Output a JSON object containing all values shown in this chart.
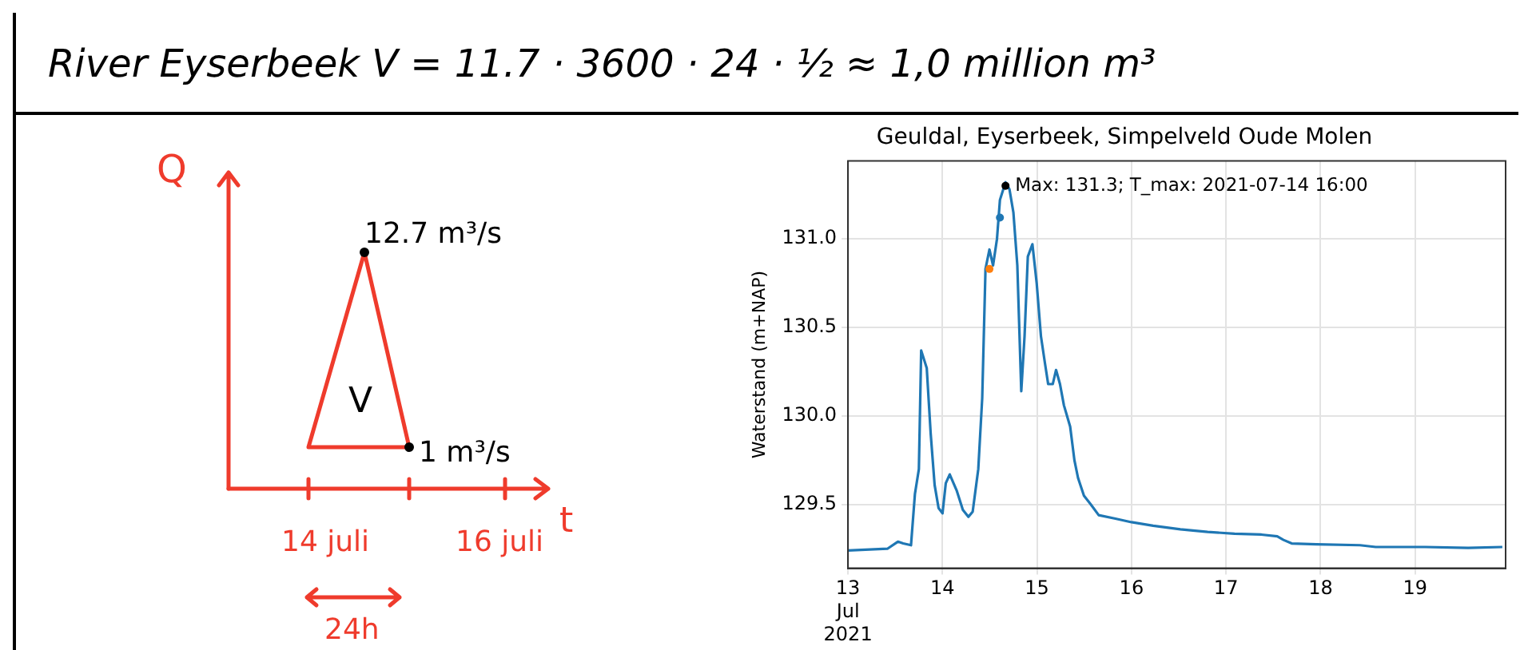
{
  "chart_data": [
    {
      "type": "other",
      "title": "River Eyserbeek V = 11.7 · 3600 · 24 · ½ ≈ 1,0 million m³",
      "xlabel": "t",
      "ylabel": "Q",
      "annotations": [
        "12.7 m³/s",
        "V",
        "1 m³/s",
        "14 juli",
        "16 juli",
        "24h"
      ]
    },
    {
      "type": "line",
      "title": "Geuldal, Eyserbeek, Simpelveld Oude Molen",
      "ylabel": "Waterstand (m+NAP)",
      "grid": true,
      "xlim": [
        "2021-07-13",
        "2021-07-19T23:00"
      ],
      "xticks": [
        {
          "value": "2021-07-13",
          "label": "13\nJul\n2021"
        },
        {
          "value": "2021-07-14",
          "label": "14"
        },
        {
          "value": "2021-07-15",
          "label": "15"
        },
        {
          "value": "2021-07-16",
          "label": "16"
        },
        {
          "value": "2021-07-17",
          "label": "17"
        },
        {
          "value": "2021-07-18",
          "label": "18"
        },
        {
          "value": "2021-07-19",
          "label": "19"
        }
      ],
      "ylim": [
        129.14,
        131.44
      ],
      "yticks": [
        {
          "value": 129.5,
          "label": "129.5"
        },
        {
          "value": 130,
          "label": "130.0"
        },
        {
          "value": 130.5,
          "label": "130.5"
        },
        {
          "value": 131,
          "label": "131.0"
        }
      ],
      "annotations": [
        {
          "text": "Max: 131.3; T_max: 2021-07-14 16:00",
          "x": "2021-07-14T16:00",
          "y": 131.3
        }
      ],
      "series": [
        {
          "type": "line",
          "color": "#1f77b4",
          "marker": "none",
          "x": [
            "2021-07-13T00:00",
            "2021-07-13T10:00",
            "2021-07-13T12:40",
            "2021-07-13T14:00",
            "2021-07-13T16:00",
            "2021-07-13T17:00",
            "2021-07-13T18:00",
            "2021-07-13T18:35",
            "2021-07-13T20:00",
            "2021-07-13T21:00",
            "2021-07-13T22:00",
            "2021-07-13T23:00",
            "2021-07-14T00:00",
            "2021-07-14T00:50",
            "2021-07-14T01:50",
            "2021-07-14T03:35",
            "2021-07-14T05:10",
            "2021-07-14T06:35",
            "2021-07-14T07:40",
            "2021-07-14T09:05",
            "2021-07-14T10:05",
            "2021-07-14T10:55",
            "2021-07-14T11:55",
            "2021-07-14T12:50",
            "2021-07-14T13:50",
            "2021-07-14T14:35",
            "2021-07-14T16:00",
            "2021-07-14T17:00",
            "2021-07-14T18:00",
            "2021-07-14T19:00",
            "2021-07-14T20:00",
            "2021-07-14T20:50",
            "2021-07-14T21:40",
            "2021-07-14T22:50",
            "2021-07-14T23:55",
            "2021-07-15T01:00",
            "2021-07-15T02:00",
            "2021-07-15T02:50",
            "2021-07-15T04:00",
            "2021-07-15T04:50",
            "2021-07-15T05:50",
            "2021-07-15T06:50",
            "2021-07-15T08:25",
            "2021-07-15T09:30",
            "2021-07-15T10:25",
            "2021-07-15T11:55",
            "2021-07-15T13:40",
            "2021-07-15T15:40",
            "2021-07-15T19:55",
            "2021-07-16T00:00",
            "2021-07-16T05:30",
            "2021-07-16T12:25",
            "2021-07-16T19:20",
            "2021-07-17T02:10",
            "2021-07-17T09:00",
            "2021-07-17T13:00",
            "2021-07-17T14:35",
            "2021-07-17T16:40",
            "2021-07-17T22:55",
            "2021-07-18T10:00",
            "2021-07-18T14:00",
            "2021-07-19T02:30",
            "2021-07-19T13:30",
            "2021-07-19T22:10"
          ],
          "values": [
            129.24,
            129.25,
            129.29,
            129.28,
            129.27,
            129.56,
            129.7,
            130.37,
            130.27,
            129.9,
            129.61,
            129.48,
            129.45,
            129.62,
            129.67,
            129.58,
            129.47,
            129.43,
            129.46,
            129.7,
            130.1,
            130.83,
            130.94,
            130.85,
            131.0,
            131.22,
            131.32,
            131.28,
            131.15,
            130.85,
            130.14,
            130.45,
            130.9,
            130.97,
            130.75,
            130.45,
            130.3,
            130.18,
            130.18,
            130.26,
            130.18,
            130.06,
            129.94,
            129.75,
            129.65,
            129.55,
            129.5,
            129.44,
            129.42,
            129.4,
            129.38,
            129.36,
            129.345,
            129.335,
            129.33,
            129.32,
            129.3,
            129.28,
            129.275,
            129.27,
            129.26,
            129.26,
            129.255,
            129.26
          ]
        },
        {
          "type": "scatter",
          "color": "#ff7f0e",
          "marker": "circle",
          "x": [
            "2021-07-14T11:55"
          ],
          "values": [
            130.83
          ]
        },
        {
          "type": "scatter",
          "color": "#1f77b4",
          "marker": "circle",
          "x": [
            "2021-07-14T14:35"
          ],
          "values": [
            131.12
          ]
        },
        {
          "type": "scatter",
          "color": "#000000",
          "marker": "circle",
          "x": [
            "2021-07-14T16:00"
          ],
          "values": [
            131.3
          ]
        }
      ]
    }
  ]
}
